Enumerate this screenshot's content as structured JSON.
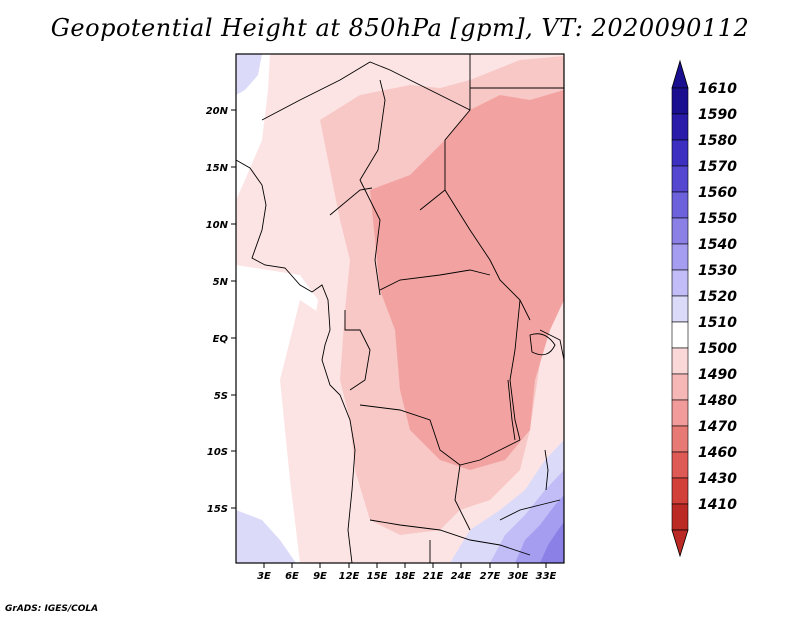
{
  "title": "Geopotential Height at 850hPa [gpm], VT: 2020090112",
  "credit": "GrADS: IGES/COLA",
  "map": {
    "lat_ticks": [
      "20N",
      "15N",
      "10N",
      "5N",
      "EQ",
      "5S",
      "10S",
      "15S"
    ],
    "lon_ticks": [
      "3E",
      "6E",
      "9E",
      "12E",
      "15E",
      "18E",
      "21E",
      "24E",
      "27E",
      "30E",
      "33E"
    ]
  },
  "colorbar": {
    "levels": [
      "1610",
      "1590",
      "1580",
      "1570",
      "1560",
      "1550",
      "1540",
      "1530",
      "1520",
      "1510",
      "1500",
      "1490",
      "1480",
      "1470",
      "1460",
      "1430",
      "1410"
    ],
    "colors": [
      "#1a0f8f",
      "#2a1ca8",
      "#3d30c0",
      "#5547d0",
      "#6e62dc",
      "#8a80e6",
      "#a59ef0",
      "#c2bdf6",
      "#dcdaf9",
      "#ffffff",
      "#fad8d8",
      "#f5b8b6",
      "#f19c9a",
      "#e87a76",
      "#de5a55",
      "#d2403a",
      "#bb2a24"
    ]
  }
}
